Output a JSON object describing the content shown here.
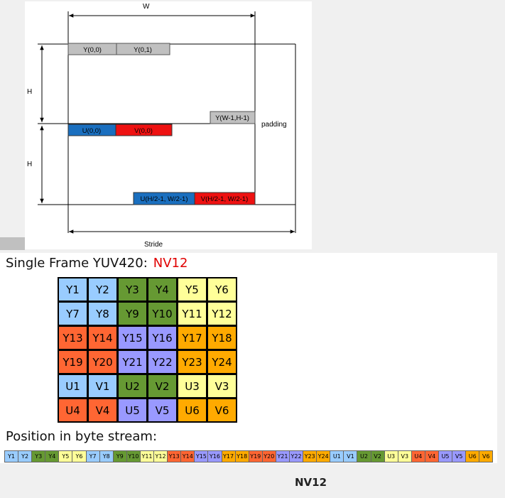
{
  "memory_layout": {
    "width_label": "W",
    "height_label_y": "H",
    "height_label_uv": "H",
    "stride_label": "Stride",
    "padding_label": "padding",
    "y00": "Y(0,0)",
    "y01": "Y(0,1)",
    "y_last": "Y(W-1,H-1)",
    "u00": "U(0,0)",
    "v00": "V(0,0)",
    "u_last": "U(H/2-1, W/2-1)",
    "v_last": "V(H/2-1, W/2-1)"
  },
  "frame": {
    "title": "Single Frame YUV420:",
    "format": "NV12",
    "grid": [
      [
        "Y1",
        "Y2",
        "Y3",
        "Y4",
        "Y5",
        "Y6"
      ],
      [
        "Y7",
        "Y8",
        "Y9",
        "Y10",
        "Y11",
        "Y12"
      ],
      [
        "Y13",
        "Y14",
        "Y15",
        "Y16",
        "Y17",
        "Y18"
      ],
      [
        "Y19",
        "Y20",
        "Y21",
        "Y22",
        "Y23",
        "Y24"
      ],
      [
        "U1",
        "V1",
        "U2",
        "V2",
        "U3",
        "V3"
      ],
      [
        "U4",
        "V4",
        "U5",
        "V5",
        "U6",
        "V6"
      ]
    ]
  },
  "stream": {
    "title": "Position in byte stream:",
    "cells": [
      "Y1",
      "Y2",
      "Y3",
      "Y4",
      "Y5",
      "Y6",
      "Y7",
      "Y8",
      "Y9",
      "Y10",
      "Y11",
      "Y12",
      "Y13",
      "Y14",
      "Y15",
      "Y16",
      "Y17",
      "Y18",
      "Y19",
      "Y20",
      "Y21",
      "Y22",
      "Y23",
      "Y24",
      "U1",
      "V1",
      "U2",
      "V2",
      "U3",
      "V3",
      "U4",
      "V4",
      "U5",
      "V5",
      "U6",
      "V6"
    ]
  },
  "caption": "NV12",
  "colors": {
    "group1": "#99ccff",
    "group2": "#669933",
    "group3": "#ffff99",
    "group4": "#ff6633",
    "group5": "#9999ff",
    "group6": "#ffaa00",
    "y_block": "#c0c0c0",
    "u_block": "#1a6fbf",
    "v_block": "#ee1111"
  }
}
